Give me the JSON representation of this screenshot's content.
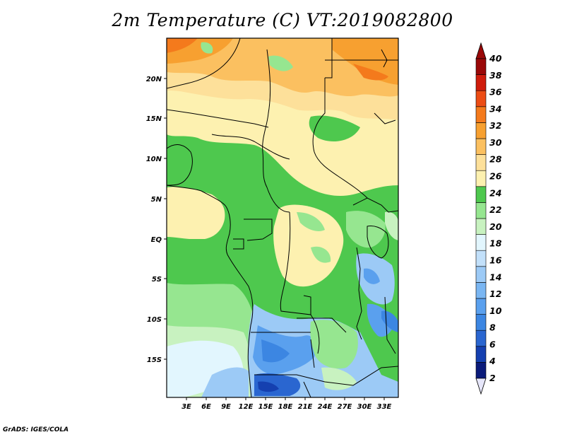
{
  "title": "2m Temperature (C) VT:2019082800",
  "credit": "GrADS: IGES/COLA",
  "map": {
    "lon_range": [
      0,
      35
    ],
    "lat_range": [
      -20,
      24
    ],
    "lon_ticks": [
      "3E",
      "6E",
      "9E",
      "12E",
      "15E",
      "18E",
      "21E",
      "24E",
      "27E",
      "30E",
      "33E"
    ],
    "lat_ticks": [
      "20N",
      "15N",
      "10N",
      "5N",
      "EQ",
      "5S",
      "10S",
      "15S"
    ]
  },
  "colorbar": {
    "labels": [
      "2",
      "4",
      "6",
      "8",
      "10",
      "12",
      "14",
      "16",
      "18",
      "20",
      "22",
      "24",
      "26",
      "28",
      "30",
      "32",
      "34",
      "36",
      "38",
      "40"
    ],
    "colors": [
      "#0b1b7a",
      "#1540b0",
      "#2a66d0",
      "#3c86e2",
      "#5aa0ee",
      "#7ab6f2",
      "#9ccaf6",
      "#c2e0fa",
      "#e2f6fe",
      "#c8f2c0",
      "#96e690",
      "#4ec84e",
      "#fdf1b0",
      "#fde09a",
      "#fbc060",
      "#f7a030",
      "#f47a1c",
      "#ec4c14",
      "#cf1c0c",
      "#9a0808"
    ],
    "lower_arrow_color": "#e6e6fa",
    "upper_arrow_color": "#9a0808"
  }
}
